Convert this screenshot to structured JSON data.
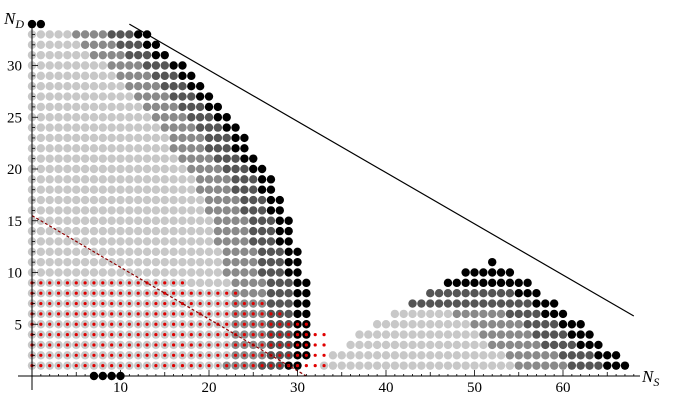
{
  "chart_data": {
    "type": "scatter",
    "title": "",
    "xlabel": {
      "main": "N",
      "sub": "S"
    },
    "ylabel": {
      "main": "N",
      "sub": "D"
    },
    "xlim": [
      -0.5,
      68
    ],
    "ylim": [
      -0.3,
      34
    ],
    "xticks": [
      "10",
      "20",
      "30",
      "40",
      "50",
      "60"
    ],
    "yticks": [
      "5",
      "10",
      "15",
      "20",
      "25",
      "30"
    ],
    "grid": false,
    "legend": "none",
    "colors": {
      "black": "#000000",
      "dark_gray": "#555555",
      "mid_gray": "#8a8a8a",
      "light_gray": "#c8c8c8",
      "red": "#e00000",
      "dashed_line": "#8b0000"
    },
    "left_region": {
      "description_rows": "for each N_D (y), points at N_S from 0 to the boundary",
      "boundary_max_x": [
        30,
        31,
        31,
        31,
        31,
        31,
        31,
        31,
        31,
        30,
        30,
        30,
        29,
        29,
        29,
        28,
        28,
        27,
        27,
        26,
        25,
        24,
        24,
        23,
        22,
        21,
        20,
        19,
        18,
        17,
        15,
        14,
        13,
        1
      ],
      "y_start": 1
    },
    "right_region": {
      "description_rows": "triangular cluster, N_S from start to end for each N_D",
      "rows": [
        {
          "y": 1,
          "x0": 33,
          "x1": 67
        },
        {
          "y": 2,
          "x0": 34,
          "x1": 66
        },
        {
          "y": 3,
          "x0": 36,
          "x1": 64
        },
        {
          "y": 4,
          "x0": 37,
          "x1": 63
        },
        {
          "y": 5,
          "x0": 39,
          "x1": 62
        },
        {
          "y": 6,
          "x0": 41,
          "x1": 60
        },
        {
          "y": 7,
          "x0": 43,
          "x1": 59
        },
        {
          "y": 8,
          "x0": 45,
          "x1": 57
        },
        {
          "y": 9,
          "x0": 47,
          "x1": 56
        },
        {
          "y": 10,
          "x0": 49,
          "x1": 54
        },
        {
          "y": 11,
          "x0": 52,
          "x1": 52
        }
      ]
    },
    "red_region": {
      "points_small": "dense red dots in lower area",
      "max_x_by_y": [
        33,
        33,
        33,
        33,
        31,
        28,
        26,
        23,
        17
      ],
      "y_start": 1
    },
    "solid_line": {
      "from": [
        11,
        34
      ],
      "to": [
        68,
        5.8
      ]
    },
    "dashed_line": {
      "from": [
        0,
        15.5
      ],
      "to": [
        31,
        0
      ]
    },
    "bottom_points": [
      [
        7,
        0
      ],
      [
        8,
        0
      ],
      [
        9,
        0
      ],
      [
        10,
        0
      ]
    ]
  }
}
